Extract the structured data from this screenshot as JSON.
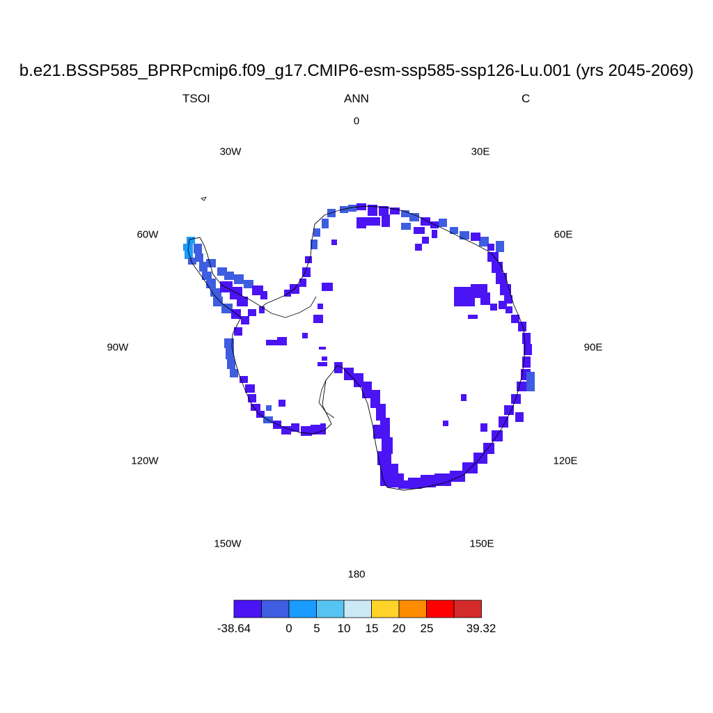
{
  "map": {
    "title": "b.e21.BSSP585_BPRPcmip6.f09_g17.CMIP6-esm-ssp585-ssp126-Lu.001 (yrs 2045-2069)",
    "subtitle_left": "TSOI",
    "subtitle_center": "ANN",
    "subtitle_right": "C",
    "projection": "south polar stereographic",
    "region": "Antarctica",
    "longitude_labels": [
      "0",
      "30E",
      "60E",
      "90E",
      "120E",
      "150E",
      "180",
      "150W",
      "120W",
      "90W",
      "60W",
      "30W"
    ],
    "dominant_value_band": "-38.64 to 0"
  },
  "colorbar": {
    "labels": [
      "-38.64",
      "0",
      "5",
      "10",
      "15",
      "20",
      "25",
      "39.32"
    ],
    "colors": [
      "#4a14f5",
      "#3e5de0",
      "#1a9bff",
      "#55c4f2",
      "#cce9f8",
      "#ffd42a",
      "#ff8c00",
      "#ff0000",
      "#d42a2a"
    ]
  },
  "colors": {
    "coast": "#000000",
    "antarctic_land_cells": "#4a14f5",
    "peninsula_cells": "#3e5de0",
    "peninsula_tip": "#1a9bff"
  }
}
